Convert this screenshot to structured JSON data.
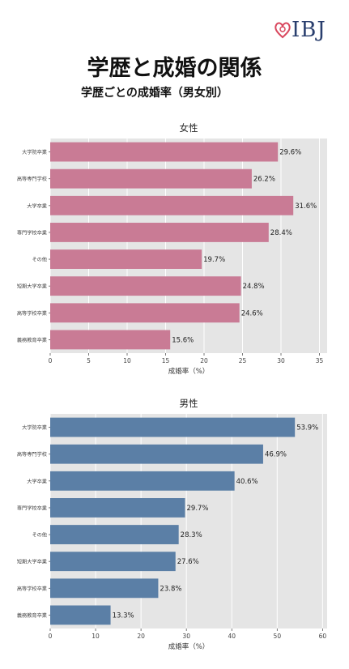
{
  "header": {
    "logo_text": "IBJ",
    "title": "学歴と成婚の関係",
    "subtitle": "学歴ごとの成婚率（男女別）"
  },
  "colors": {
    "female_bar": "#c97b95",
    "male_bar": "#5b7fa6",
    "plot_bg": "#e5e5e5",
    "logo_heart": "#d9475e",
    "logo_text": "#2a3f6e"
  },
  "chart_data": [
    {
      "type": "bar",
      "orientation": "horizontal",
      "title": "女性",
      "xlabel": "成婚率（%）",
      "categories": [
        "大学院卒業",
        "高等専門学校",
        "大学卒業",
        "専門学校卒業",
        "その他",
        "短期大学卒業",
        "高等学校卒業",
        "義務教育卒業"
      ],
      "values": [
        29.6,
        26.2,
        31.6,
        28.4,
        19.7,
        24.8,
        24.6,
        15.6
      ],
      "value_labels": [
        "29.6%",
        "26.2%",
        "31.6%",
        "28.4%",
        "19.7%",
        "24.8%",
        "24.6%",
        "15.6%"
      ],
      "xlim": [
        0,
        36
      ],
      "xticks": [
        0,
        5,
        10,
        15,
        20,
        25,
        30,
        35
      ],
      "grid": true
    },
    {
      "type": "bar",
      "orientation": "horizontal",
      "title": "男性",
      "xlabel": "成婚率（%）",
      "categories": [
        "大学院卒業",
        "高等専門学校",
        "大学卒業",
        "専門学校卒業",
        "その他",
        "短期大学卒業",
        "高等学校卒業",
        "義務教育卒業"
      ],
      "values": [
        53.9,
        46.9,
        40.6,
        29.7,
        28.3,
        27.6,
        23.8,
        13.3
      ],
      "value_labels": [
        "53.9%",
        "46.9%",
        "40.6%",
        "29.7%",
        "28.3%",
        "27.6%",
        "23.8%",
        "13.3%"
      ],
      "xlim": [
        0,
        61
      ],
      "xticks": [
        0,
        10,
        20,
        30,
        40,
        50,
        60
      ],
      "grid": true
    }
  ]
}
